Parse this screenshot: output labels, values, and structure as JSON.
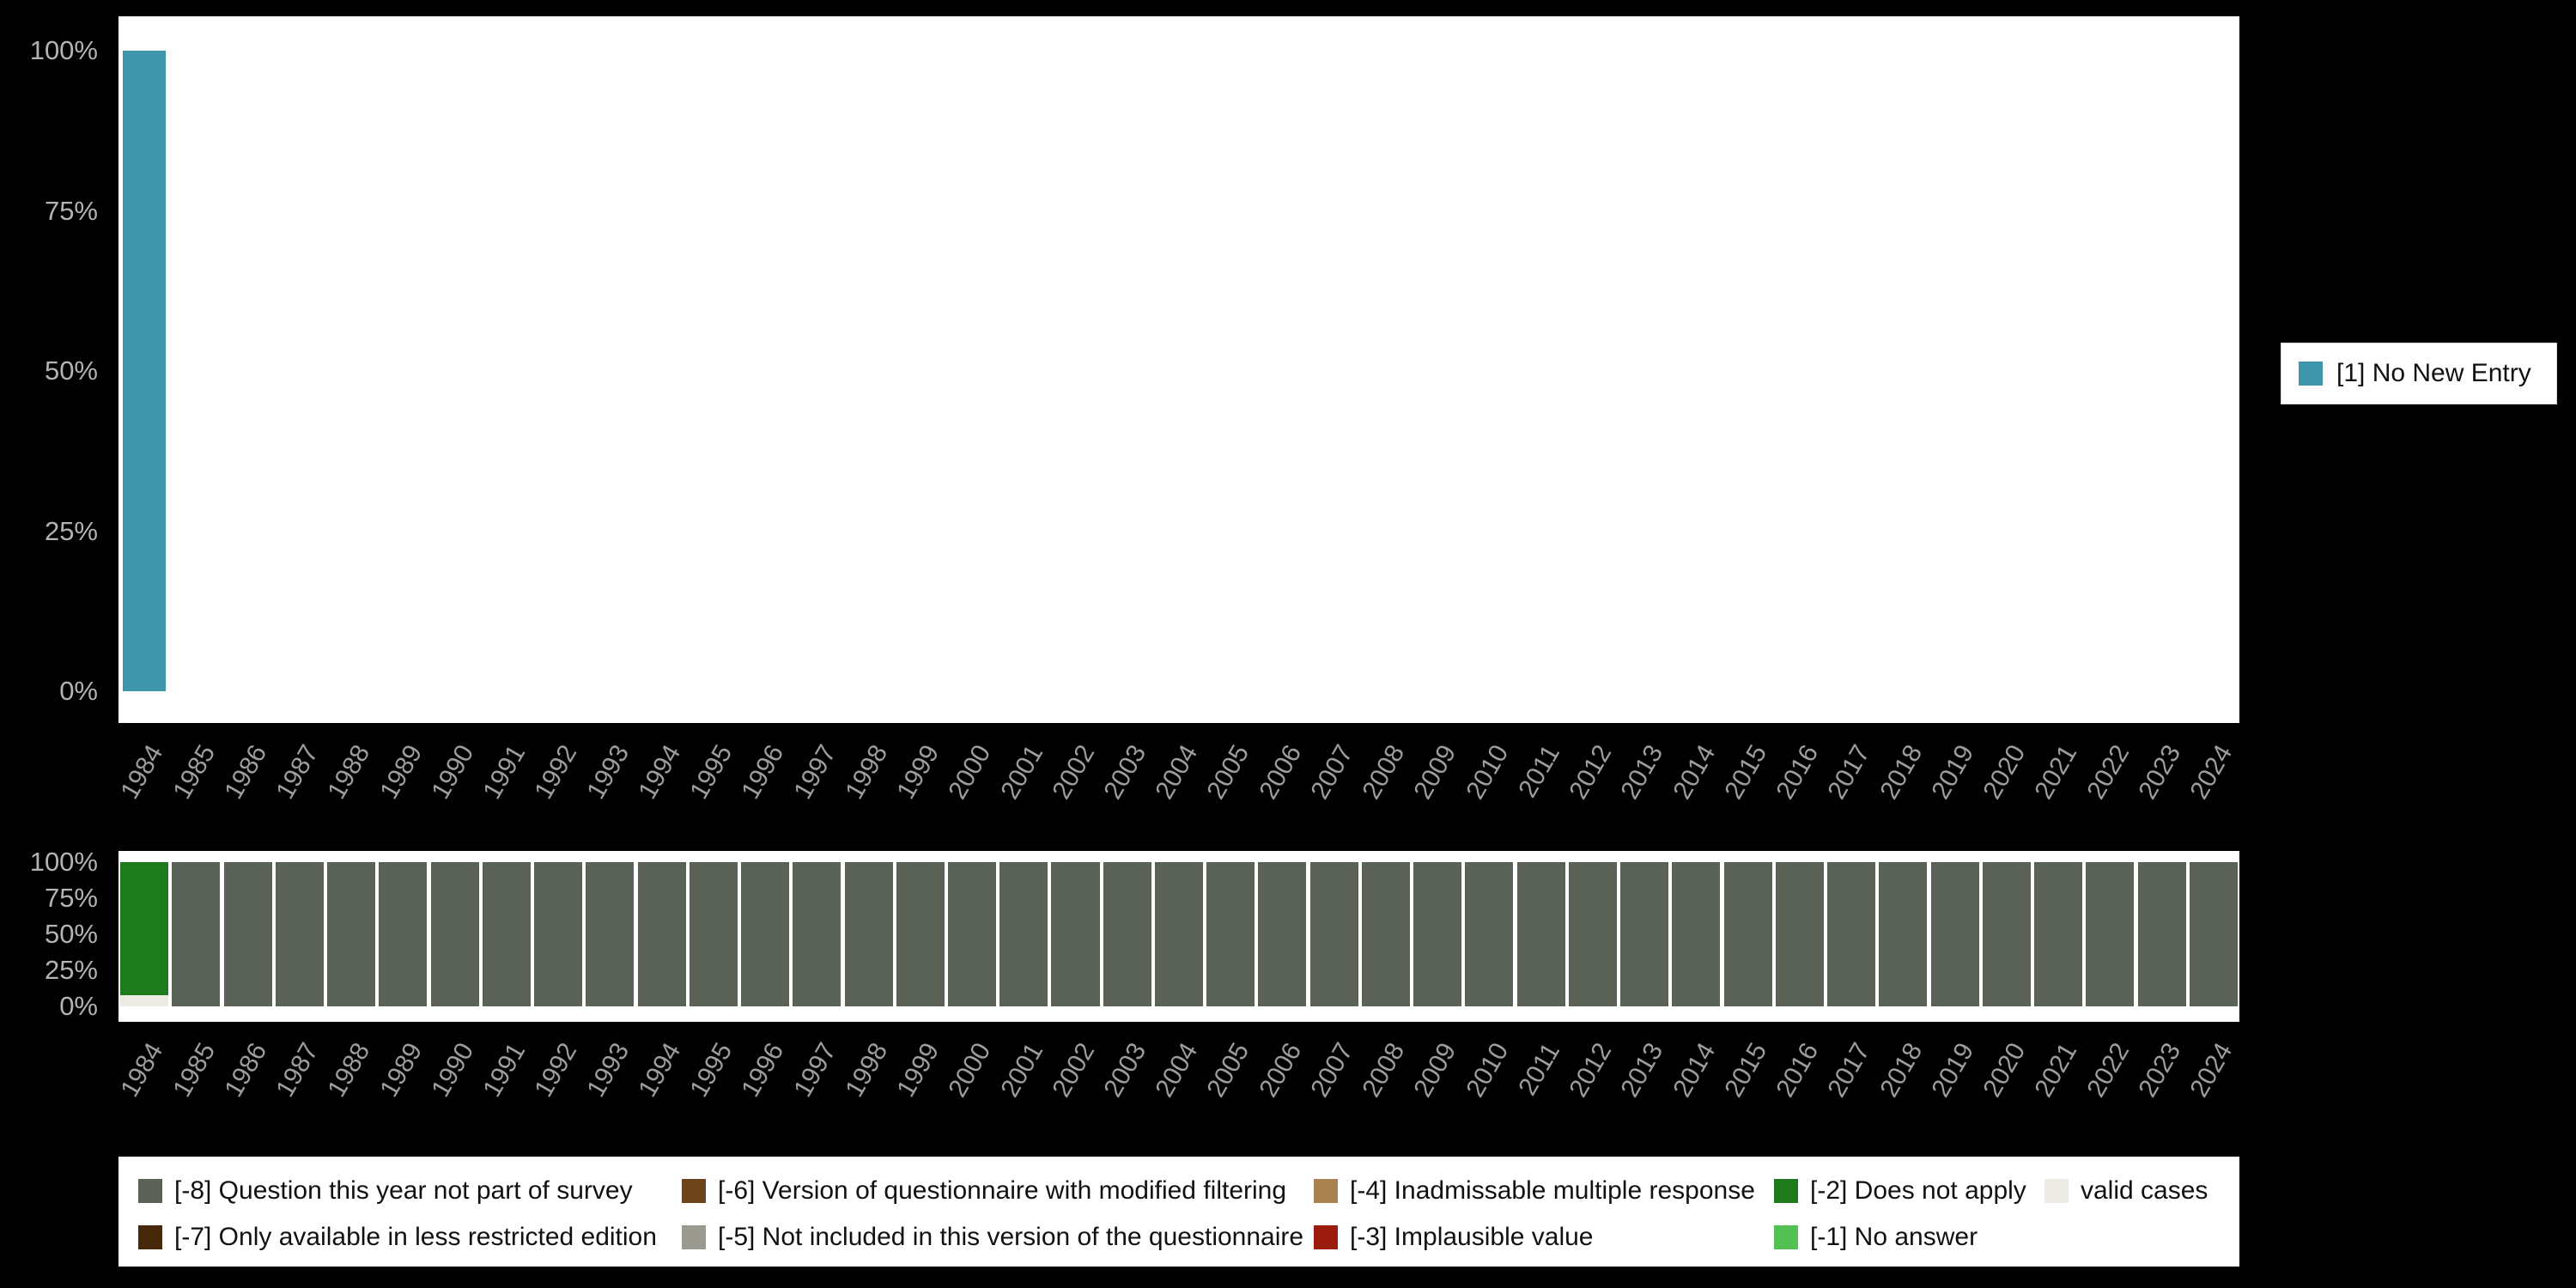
{
  "colors": {
    "background": "#000000",
    "plot_background": "#ffffff",
    "axis_tick_text": "#a8a8a8",
    "legend_text": "#111111"
  },
  "chart_data": [
    {
      "type": "bar",
      "stacked": true,
      "unit": "percent",
      "title": "",
      "xlabel": "",
      "ylabel": "",
      "ylim": [
        0,
        100
      ],
      "grid": false,
      "legend_position": "right",
      "categories": [
        "1984",
        "1985",
        "1986",
        "1987",
        "1988",
        "1989",
        "1990",
        "1991",
        "1992",
        "1993",
        "1994",
        "1995",
        "1996",
        "1997",
        "1998",
        "1999",
        "2000",
        "2001",
        "2002",
        "2003",
        "2004",
        "2005",
        "2006",
        "2007",
        "2008",
        "2009",
        "2010",
        "2011",
        "2012",
        "2013",
        "2014",
        "2015",
        "2016",
        "2017",
        "2018",
        "2019",
        "2020",
        "2021",
        "2022",
        "2023",
        "2024"
      ],
      "yticks": [
        {
          "value": 0,
          "label": "0%"
        },
        {
          "value": 25,
          "label": "25%"
        },
        {
          "value": 50,
          "label": "50%"
        },
        {
          "value": 75,
          "label": "75%"
        },
        {
          "value": 100,
          "label": "100%"
        }
      ],
      "series": [
        {
          "name": "[1] No New Entry",
          "color": "#3e96ab",
          "values": [
            100,
            0,
            0,
            0,
            0,
            0,
            0,
            0,
            0,
            0,
            0,
            0,
            0,
            0,
            0,
            0,
            0,
            0,
            0,
            0,
            0,
            0,
            0,
            0,
            0,
            0,
            0,
            0,
            0,
            0,
            0,
            0,
            0,
            0,
            0,
            0,
            0,
            0,
            0,
            0,
            0
          ]
        }
      ]
    },
    {
      "type": "bar",
      "stacked": true,
      "unit": "percent",
      "title": "",
      "xlabel": "",
      "ylabel": "",
      "ylim": [
        0,
        100
      ],
      "grid": false,
      "legend_position": "bottom",
      "stack_order": "series listed bottom-to-top",
      "categories": [
        "1984",
        "1985",
        "1986",
        "1987",
        "1988",
        "1989",
        "1990",
        "1991",
        "1992",
        "1993",
        "1994",
        "1995",
        "1996",
        "1997",
        "1998",
        "1999",
        "2000",
        "2001",
        "2002",
        "2003",
        "2004",
        "2005",
        "2006",
        "2007",
        "2008",
        "2009",
        "2010",
        "2011",
        "2012",
        "2013",
        "2014",
        "2015",
        "2016",
        "2017",
        "2018",
        "2019",
        "2020",
        "2021",
        "2022",
        "2023",
        "2024"
      ],
      "yticks": [
        {
          "value": 0,
          "label": "0%"
        },
        {
          "value": 25,
          "label": "25%"
        },
        {
          "value": 50,
          "label": "50%"
        },
        {
          "value": 75,
          "label": "75%"
        },
        {
          "value": 100,
          "label": "100%"
        }
      ],
      "series": [
        {
          "name": "valid cases",
          "color": "#ebebe3",
          "values": [
            8,
            0,
            0,
            0,
            0,
            0,
            0,
            0,
            0,
            0,
            0,
            0,
            0,
            0,
            0,
            0,
            0,
            0,
            0,
            0,
            0,
            0,
            0,
            0,
            0,
            0,
            0,
            0,
            0,
            0,
            0,
            0,
            0,
            0,
            0,
            0,
            0,
            0,
            0,
            0,
            0
          ]
        },
        {
          "name": "[-2] Does not apply",
          "color": "#1d7a1d",
          "values": [
            92,
            0,
            0,
            0,
            0,
            0,
            0,
            0,
            0,
            0,
            0,
            0,
            0,
            0,
            0,
            0,
            0,
            0,
            0,
            0,
            0,
            0,
            0,
            0,
            0,
            0,
            0,
            0,
            0,
            0,
            0,
            0,
            0,
            0,
            0,
            0,
            0,
            0,
            0,
            0,
            0
          ]
        },
        {
          "name": "[-8] Question this year not part of survey",
          "color": "#5a6157",
          "values": [
            0,
            100,
            100,
            100,
            100,
            100,
            100,
            100,
            100,
            100,
            100,
            100,
            100,
            100,
            100,
            100,
            100,
            100,
            100,
            100,
            100,
            100,
            100,
            100,
            100,
            100,
            100,
            100,
            100,
            100,
            100,
            100,
            100,
            100,
            100,
            100,
            100,
            100,
            100,
            100,
            100
          ]
        }
      ]
    }
  ],
  "legend_right": {
    "items": [
      {
        "label": "[1] No New Entry",
        "color": "#3e96ab"
      }
    ]
  },
  "legend_bottom": {
    "rows": [
      [
        {
          "label": "[-8] Question this year not part of survey",
          "color": "#5a6157"
        },
        {
          "label": "[-6] Version of questionnaire with modified filtering",
          "color": "#6b441c"
        },
        {
          "label": "[-4] Inadmissable multiple response",
          "color": "#a8834f"
        },
        {
          "label": "[-2] Does not apply",
          "color": "#1d7a1d"
        },
        {
          "label": "valid cases",
          "color": "#ebebe3"
        }
      ],
      [
        {
          "label": "[-7] Only available in less restricted edition",
          "color": "#47280a"
        },
        {
          "label": "[-5] Not included in this version of the questionnaire",
          "color": "#9a9a90"
        },
        {
          "label": "[-3] Implausible value",
          "color": "#9b1c0f"
        },
        {
          "label": "[-1] No answer",
          "color": "#52c152"
        }
      ]
    ]
  }
}
